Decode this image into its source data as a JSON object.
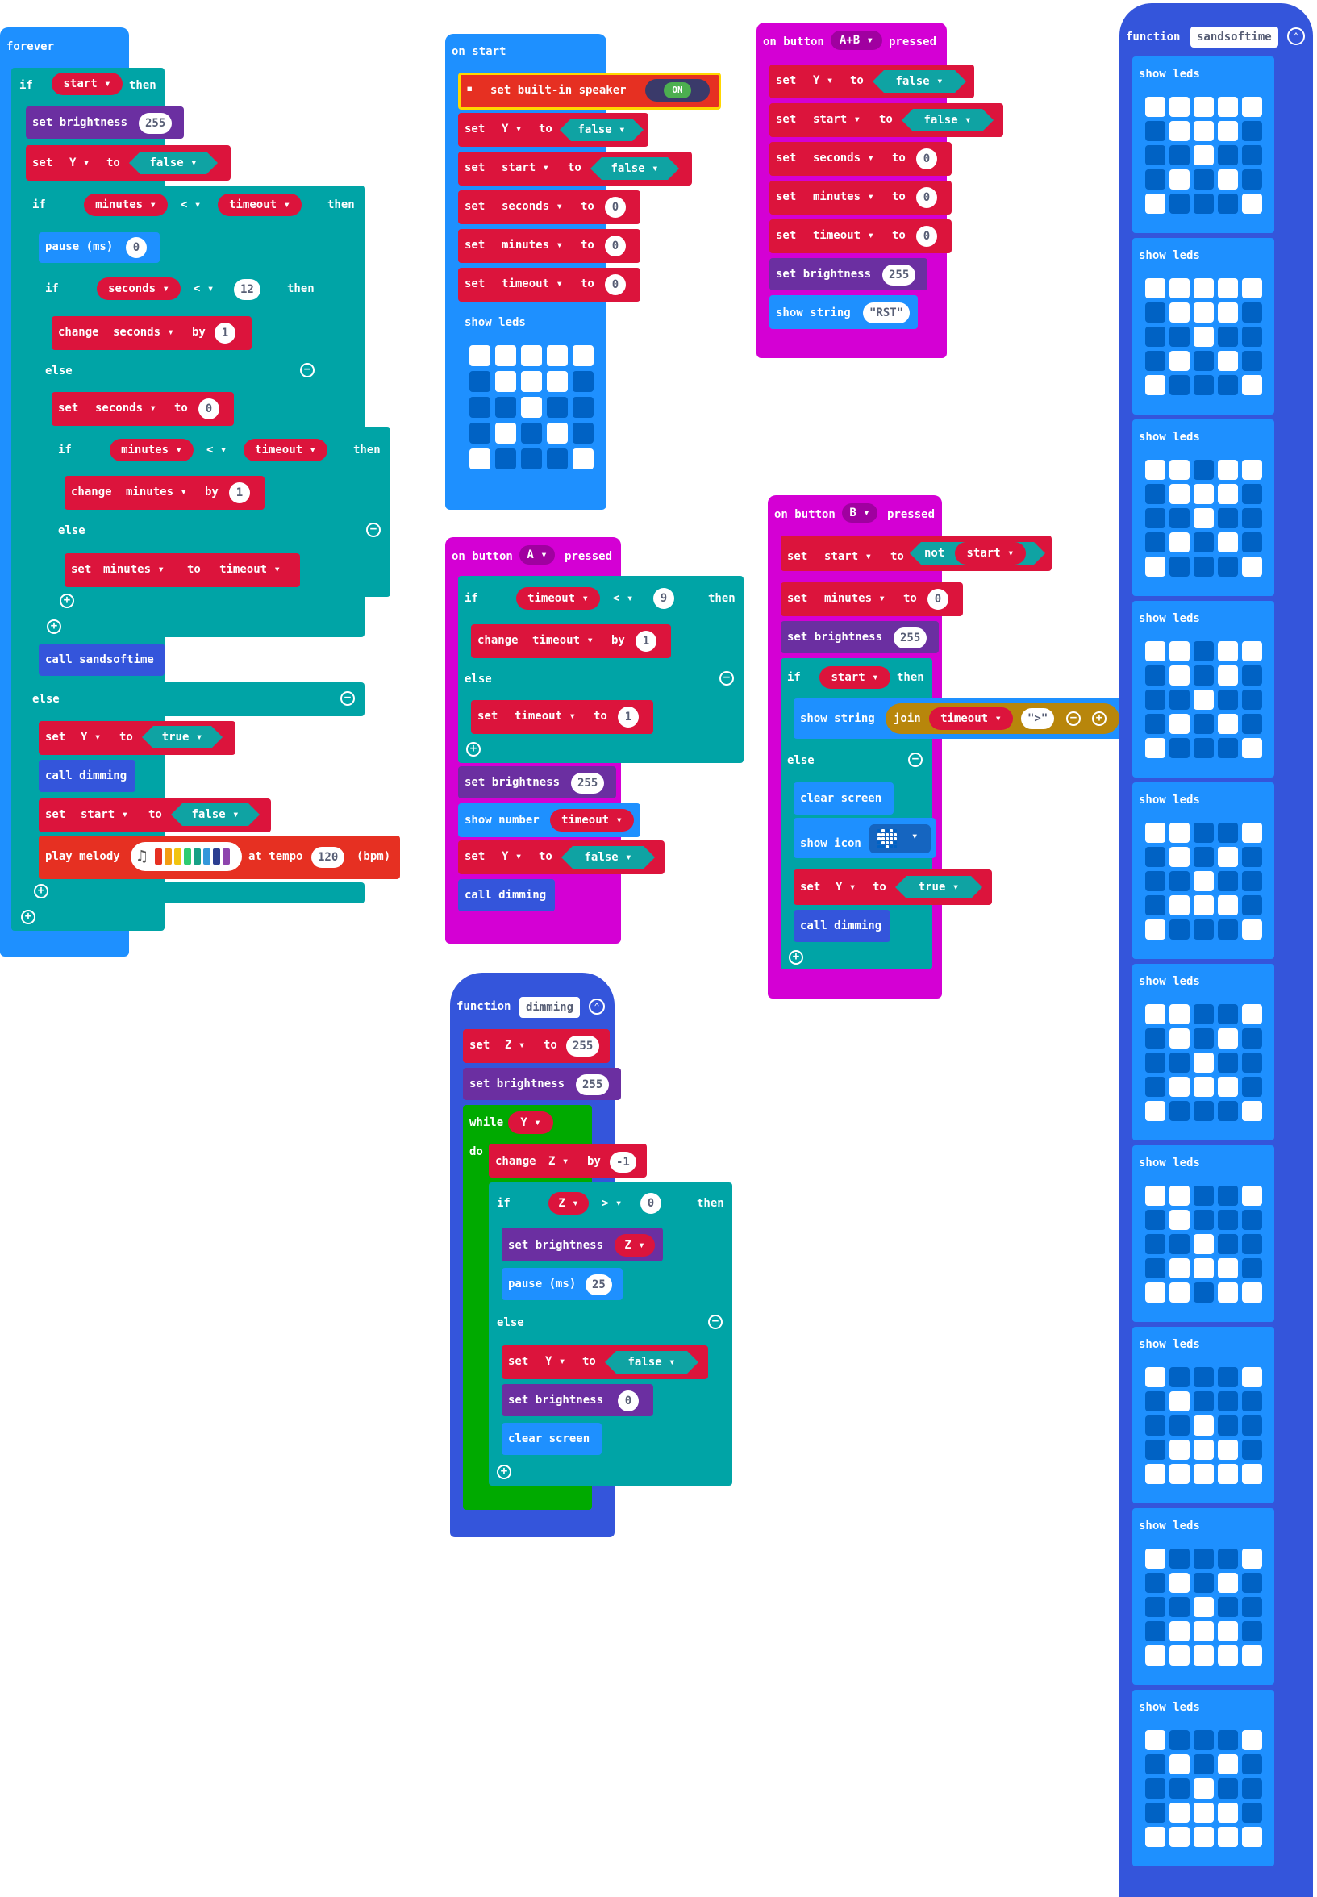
{
  "forever": {
    "hat": "forever",
    "if1": "if",
    "start_var": "start",
    "then": "then",
    "set_brightness": "set brightness",
    "b255": "255",
    "set": "set",
    "y": "Y",
    "to": "to",
    "false": "false",
    "true": "true",
    "if2": "if",
    "minutes": "minutes",
    "lt": "<",
    "timeout": "timeout",
    "pause": "pause (ms)",
    "p0": "0",
    "seconds": "seconds",
    "n12": "12",
    "change": "change",
    "by": "by",
    "n1": "1",
    "else": "else",
    "n0": "0",
    "call_sandsoftime": "call sandsoftime",
    "call_dimming": "call dimming",
    "play_melody": "play melody",
    "at_tempo": "at tempo",
    "tempo": "120",
    "bpm": "(bpm)"
  },
  "onstart": {
    "hat": "on start",
    "speaker": "set built-in speaker",
    "on": "ON",
    "set": "set",
    "y": "Y",
    "to": "to",
    "false": "false",
    "start": "start",
    "seconds": "seconds",
    "minutes": "minutes",
    "timeout": "timeout",
    "n0": "0",
    "show_leds": "show leds"
  },
  "ab": {
    "hat_on": "on button",
    "btn": "A+B",
    "pressed": "pressed",
    "set": "set",
    "y": "Y",
    "to": "to",
    "false": "false",
    "start": "start",
    "seconds": "seconds",
    "minutes": "minutes",
    "timeout": "timeout",
    "n0": "0",
    "set_brightness": "set brightness",
    "b255": "255",
    "show_string": "show string",
    "rst": "\"RST\""
  },
  "btnA": {
    "hat_on": "on button",
    "btn": "A",
    "pressed": "pressed",
    "if": "if",
    "timeout": "timeout",
    "lt": "<",
    "n9": "9",
    "then": "then",
    "change": "change",
    "by": "by",
    "n1": "1",
    "else": "else",
    "set": "set",
    "to": "to",
    "set_brightness": "set brightness",
    "b255": "255",
    "show_number": "show number",
    "y": "Y",
    "false": "false",
    "call_dimming": "call dimming"
  },
  "btnB": {
    "hat_on": "on button",
    "btn": "B",
    "pressed": "pressed",
    "set": "set",
    "start": "start",
    "to": "to",
    "not": "not",
    "minutes": "minutes",
    "n0": "0",
    "set_brightness": "set brightness",
    "b255": "255",
    "if": "if",
    "then": "then",
    "show_string": "show string",
    "join": "join",
    "timeout": "timeout",
    "gt_str": "\">\"",
    "else": "else",
    "clear_screen": "clear screen",
    "show_icon": "show icon",
    "y": "Y",
    "true": "true",
    "call_dimming": "call dimming"
  },
  "dimming": {
    "function": "function",
    "name": "dimming",
    "set": "set",
    "z": "Z",
    "to": "to",
    "n255": "255",
    "set_brightness": "set brightness",
    "b255": "255",
    "while": "while",
    "y": "Y",
    "do": "do",
    "change": "change",
    "by": "by",
    "neg1": "-1",
    "if": "if",
    "gt": ">",
    "n0": "0",
    "then": "then",
    "pause": "pause (ms)",
    "n25": "25",
    "else": "else",
    "false": "false",
    "clear_screen": "clear screen"
  },
  "sands": {
    "function": "function",
    "name": "sandsoftime",
    "show_leds": "show leds"
  },
  "colors": {
    "variables": "#dc143c",
    "logic": "#00a4a6",
    "led": "#6b2fa1",
    "basic": "#1e90ff",
    "functions": "#3455db",
    "input": "#d400d4",
    "loops": "#00aa00",
    "music": "#e63022",
    "text": "#b8860b"
  },
  "melody_colors": [
    "#e63022",
    "#f39c12",
    "#f1c40f",
    "#2ecc71",
    "#16a085",
    "#3498db",
    "#2c3e91",
    "#8e44ad"
  ],
  "leds": {
    "onstart": [
      [
        1,
        1,
        1,
        1,
        1
      ],
      [
        0,
        1,
        1,
        1,
        0
      ],
      [
        0,
        0,
        1,
        0,
        0
      ],
      [
        0,
        1,
        0,
        1,
        0
      ],
      [
        1,
        0,
        0,
        0,
        1
      ]
    ],
    "sands": [
      [
        [
          1,
          1,
          1,
          1,
          1
        ],
        [
          0,
          1,
          1,
          1,
          0
        ],
        [
          0,
          0,
          1,
          0,
          0
        ],
        [
          0,
          1,
          0,
          1,
          0
        ],
        [
          1,
          0,
          0,
          0,
          1
        ]
      ],
      [
        [
          1,
          1,
          1,
          1,
          1
        ],
        [
          0,
          1,
          1,
          1,
          0
        ],
        [
          0,
          0,
          1,
          0,
          0
        ],
        [
          0,
          1,
          0,
          1,
          0
        ],
        [
          1,
          0,
          0,
          0,
          1
        ]
      ],
      [
        [
          1,
          1,
          0,
          1,
          1
        ],
        [
          0,
          1,
          1,
          1,
          0
        ],
        [
          0,
          0,
          1,
          0,
          0
        ],
        [
          0,
          1,
          0,
          1,
          0
        ],
        [
          1,
          0,
          0,
          0,
          1
        ]
      ],
      [
        [
          1,
          1,
          0,
          1,
          1
        ],
        [
          0,
          1,
          0,
          1,
          0
        ],
        [
          0,
          0,
          1,
          0,
          0
        ],
        [
          0,
          1,
          0,
          1,
          0
        ],
        [
          1,
          0,
          0,
          0,
          1
        ]
      ],
      [
        [
          1,
          1,
          0,
          0,
          1
        ],
        [
          0,
          1,
          0,
          1,
          0
        ],
        [
          0,
          0,
          1,
          0,
          0
        ],
        [
          0,
          1,
          1,
          1,
          0
        ],
        [
          1,
          0,
          0,
          0,
          1
        ]
      ],
      [
        [
          1,
          1,
          0,
          0,
          1
        ],
        [
          0,
          1,
          0,
          1,
          0
        ],
        [
          0,
          0,
          1,
          0,
          0
        ],
        [
          0,
          1,
          1,
          1,
          0
        ],
        [
          1,
          0,
          0,
          0,
          1
        ]
      ],
      [
        [
          1,
          1,
          0,
          0,
          1
        ],
        [
          0,
          1,
          0,
          0,
          0
        ],
        [
          0,
          0,
          1,
          0,
          0
        ],
        [
          0,
          1,
          1,
          1,
          0
        ],
        [
          1,
          1,
          0,
          1,
          1
        ]
      ],
      [
        [
          1,
          0,
          0,
          0,
          1
        ],
        [
          0,
          1,
          0,
          0,
          0
        ],
        [
          0,
          0,
          1,
          0,
          0
        ],
        [
          0,
          1,
          1,
          1,
          0
        ],
        [
          1,
          1,
          1,
          1,
          1
        ]
      ],
      [
        [
          1,
          0,
          0,
          0,
          1
        ],
        [
          0,
          1,
          0,
          1,
          0
        ],
        [
          0,
          0,
          1,
          0,
          0
        ],
        [
          0,
          1,
          1,
          1,
          0
        ],
        [
          1,
          1,
          1,
          1,
          1
        ]
      ],
      [
        [
          1,
          0,
          0,
          0,
          1
        ],
        [
          0,
          1,
          0,
          1,
          0
        ],
        [
          0,
          0,
          1,
          0,
          0
        ],
        [
          0,
          1,
          1,
          1,
          0
        ],
        [
          1,
          1,
          1,
          1,
          1
        ]
      ]
    ],
    "icon": [
      [
        0,
        1,
        0,
        1,
        0
      ],
      [
        1,
        1,
        1,
        1,
        1
      ],
      [
        1,
        1,
        1,
        1,
        1
      ],
      [
        0,
        1,
        1,
        1,
        0
      ],
      [
        0,
        0,
        1,
        0,
        0
      ]
    ]
  }
}
